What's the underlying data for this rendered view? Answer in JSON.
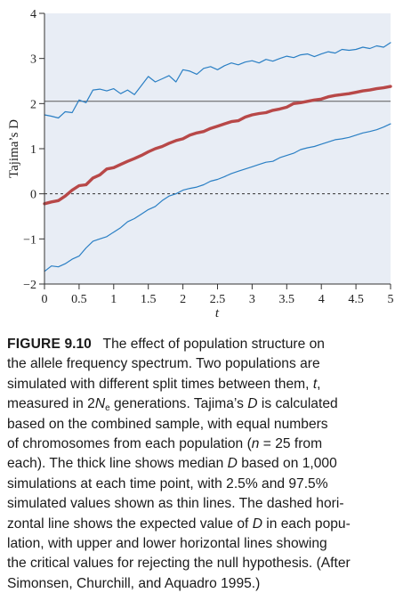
{
  "chart_data": {
    "type": "line",
    "xlabel": "t",
    "ylabel": "Tajima’s D",
    "xlim": [
      0,
      5
    ],
    "ylim": [
      -2,
      4
    ],
    "xticks": [
      "0",
      "0.5",
      "1",
      "1.5",
      "2",
      "2.5",
      "3",
      "3.5",
      "4",
      "4.5",
      "5"
    ],
    "yticks": [
      "−2",
      "−1",
      "0",
      "1",
      "2",
      "3",
      "4"
    ],
    "grid": false,
    "plot_background": "#e8edf5",
    "reference_lines": [
      {
        "y": 2.05,
        "style": "solid",
        "color": "#5a5a5a"
      },
      {
        "y": 0.0,
        "style": "dashed",
        "color": "#333333"
      }
    ],
    "series": [
      {
        "style": "thin",
        "color": "#2a7fc4",
        "x": [
          0,
          0.1,
          0.2,
          0.3,
          0.4,
          0.5,
          0.6,
          0.7,
          0.8,
          0.9,
          1.0,
          1.1,
          1.2,
          1.3,
          1.4,
          1.5,
          1.6,
          1.7,
          1.8,
          1.9,
          2.0,
          2.1,
          2.2,
          2.3,
          2.4,
          2.5,
          2.6,
          2.7,
          2.8,
          2.9,
          3.0,
          3.1,
          3.2,
          3.3,
          3.4,
          3.5,
          3.6,
          3.7,
          3.8,
          3.9,
          4.0,
          4.1,
          4.2,
          4.3,
          4.4,
          4.5,
          4.6,
          4.7,
          4.8,
          4.9,
          5.0
        ],
        "y": [
          1.75,
          1.72,
          1.68,
          1.82,
          1.8,
          2.08,
          2.02,
          2.3,
          2.32,
          2.28,
          2.33,
          2.22,
          2.3,
          2.2,
          2.4,
          2.6,
          2.48,
          2.55,
          2.62,
          2.48,
          2.75,
          2.72,
          2.65,
          2.78,
          2.82,
          2.75,
          2.84,
          2.9,
          2.86,
          2.92,
          2.95,
          2.9,
          2.98,
          2.94,
          3.0,
          3.05,
          3.02,
          3.08,
          3.1,
          3.04,
          3.1,
          3.15,
          3.12,
          3.2,
          3.18,
          3.2,
          3.25,
          3.22,
          3.28,
          3.25,
          3.35
        ]
      },
      {
        "style": "thick",
        "color": "#b84848",
        "x": [
          0,
          0.1,
          0.2,
          0.3,
          0.4,
          0.5,
          0.6,
          0.7,
          0.8,
          0.9,
          1.0,
          1.1,
          1.2,
          1.3,
          1.4,
          1.5,
          1.6,
          1.7,
          1.8,
          1.9,
          2.0,
          2.1,
          2.2,
          2.3,
          2.4,
          2.5,
          2.6,
          2.7,
          2.8,
          2.9,
          3.0,
          3.1,
          3.2,
          3.3,
          3.4,
          3.5,
          3.6,
          3.7,
          3.8,
          3.9,
          4.0,
          4.1,
          4.2,
          4.3,
          4.4,
          4.5,
          4.6,
          4.7,
          4.8,
          4.9,
          5.0
        ],
        "y": [
          -0.22,
          -0.18,
          -0.15,
          -0.05,
          0.08,
          0.18,
          0.2,
          0.35,
          0.42,
          0.55,
          0.58,
          0.65,
          0.72,
          0.78,
          0.85,
          0.93,
          1.0,
          1.05,
          1.12,
          1.18,
          1.22,
          1.3,
          1.35,
          1.38,
          1.45,
          1.5,
          1.55,
          1.6,
          1.62,
          1.7,
          1.75,
          1.78,
          1.8,
          1.85,
          1.88,
          1.92,
          2.0,
          2.02,
          2.05,
          2.08,
          2.1,
          2.15,
          2.18,
          2.2,
          2.22,
          2.25,
          2.28,
          2.3,
          2.33,
          2.35,
          2.38
        ]
      },
      {
        "style": "thin",
        "color": "#2a7fc4",
        "x": [
          0,
          0.1,
          0.2,
          0.3,
          0.4,
          0.5,
          0.6,
          0.7,
          0.8,
          0.9,
          1.0,
          1.1,
          1.2,
          1.3,
          1.4,
          1.5,
          1.6,
          1.7,
          1.8,
          1.9,
          2.0,
          2.1,
          2.2,
          2.3,
          2.4,
          2.5,
          2.6,
          2.7,
          2.8,
          2.9,
          3.0,
          3.1,
          3.2,
          3.3,
          3.4,
          3.5,
          3.6,
          3.7,
          3.8,
          3.9,
          4.0,
          4.1,
          4.2,
          4.3,
          4.4,
          4.5,
          4.6,
          4.7,
          4.8,
          4.9,
          5.0
        ],
        "y": [
          -1.72,
          -1.6,
          -1.62,
          -1.55,
          -1.45,
          -1.38,
          -1.2,
          -1.05,
          -1.0,
          -0.95,
          -0.85,
          -0.75,
          -0.62,
          -0.55,
          -0.45,
          -0.35,
          -0.28,
          -0.15,
          -0.05,
          0.0,
          0.08,
          0.12,
          0.15,
          0.2,
          0.28,
          0.32,
          0.38,
          0.45,
          0.5,
          0.55,
          0.6,
          0.65,
          0.7,
          0.72,
          0.8,
          0.85,
          0.9,
          0.98,
          1.02,
          1.05,
          1.1,
          1.15,
          1.2,
          1.22,
          1.25,
          1.3,
          1.35,
          1.38,
          1.42,
          1.48,
          1.55
        ]
      }
    ]
  },
  "caption": {
    "label": "FIGURE",
    "number": "9.10",
    "lines": [
      "the allele frequency spectrum. Two populations are",
      "simulated with different split times between them,",
      "measured in 2",
      "based on the combined sample, with equal numbers",
      "of chromosomes from each population (",
      "each). The thick line shows median",
      "simulations at each time point, with 2.5% and 97.5%",
      "simulated values shown as thin lines. The dashed hori-",
      "zontal line shows the expected value of",
      "lation, with upper and lower horizontal lines showing",
      "the critical values for rejecting the null hypothesis. (After",
      "Simonsen, Churchill, and Aquadro 1995.)"
    ],
    "title": "The effect of population structure on",
    "t_var": "t",
    "t_comma": ",",
    "ne_n": "N",
    "ne_sub": "e",
    "gen_text": " generations. Tajima’s ",
    "d_var": "D",
    "calc_text": " is calculated",
    "n_var": "n",
    "n_eq": " = 25 from",
    "median_d": "D",
    "based_text": " based on 1,000",
    "expected_d": "D",
    "in_each": " in each popu-"
  }
}
